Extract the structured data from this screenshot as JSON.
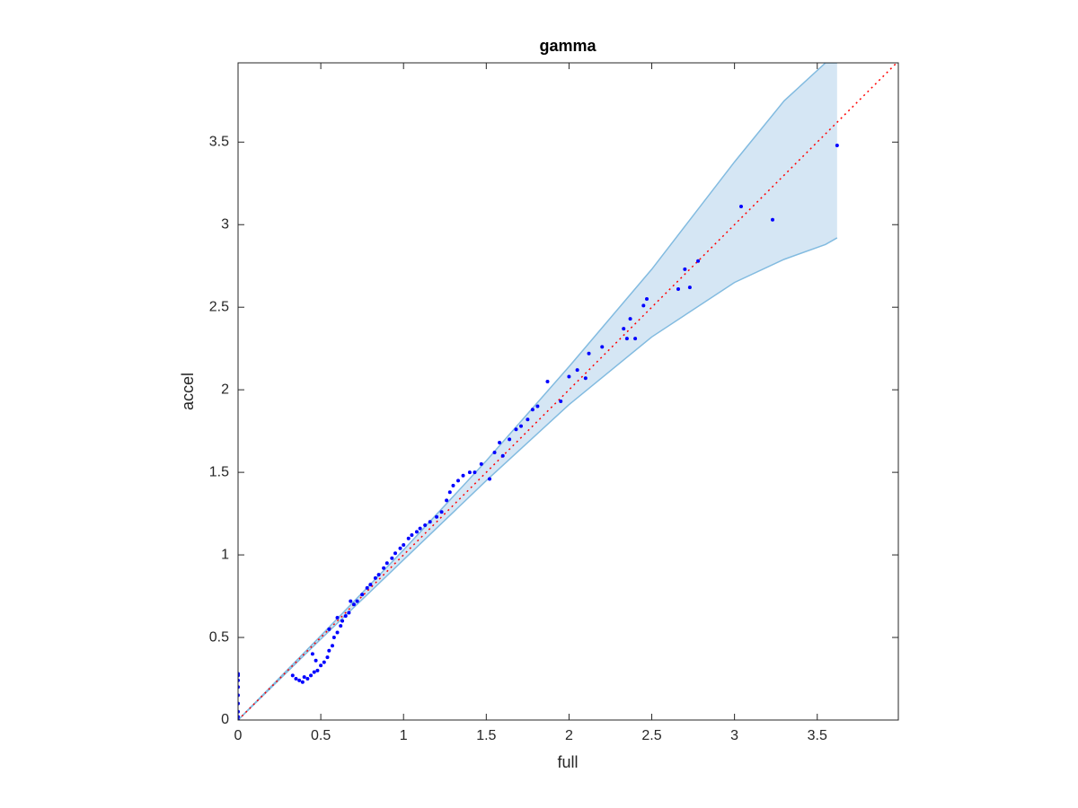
{
  "chart_data": {
    "type": "scatter",
    "title": "gamma",
    "x_label": "full",
    "y_label": "accel",
    "xlim": [
      0,
      3.99
    ],
    "ylim": [
      0,
      3.98
    ],
    "xticks": [
      0,
      0.5,
      1,
      1.5,
      2,
      2.5,
      3,
      3.5
    ],
    "yticks": [
      0,
      0.5,
      1,
      1.5,
      2,
      2.5,
      3,
      3.5
    ],
    "box": true,
    "band": {
      "color": "#d5e6f4",
      "edge_color": "#82bbe0",
      "x": [
        0,
        0.5,
        1,
        1.5,
        2,
        2.5,
        3,
        3.3,
        3.55,
        3.62
      ],
      "upper": [
        0,
        0.51,
        1.03,
        1.57,
        2.14,
        2.73,
        3.38,
        3.75,
        3.98,
        3.98
      ],
      "lower": [
        0,
        0.49,
        0.97,
        1.45,
        1.91,
        2.32,
        2.65,
        2.79,
        2.88,
        2.92
      ]
    },
    "reference_line": {
      "color": "#ff0000",
      "x": [
        0,
        3.99
      ],
      "y": [
        0,
        3.99
      ]
    },
    "points": {
      "color": "#0000ff",
      "x": [
        0,
        0,
        0,
        0,
        0,
        0,
        0,
        0,
        0,
        0.33,
        0.35,
        0.37,
        0.39,
        0.4,
        0.42,
        0.44,
        0.46,
        0.48,
        0.5,
        0.52,
        0.54,
        0.55,
        0.57,
        0.58,
        0.6,
        0.62,
        0.63,
        0.65,
        0.67,
        0.7,
        0.72,
        0.75,
        0.78,
        0.8,
        0.83,
        0.85,
        0.88,
        0.9,
        0.93,
        0.95,
        0.98,
        1.0,
        1.03,
        1.05,
        1.08,
        1.1,
        1.13,
        1.16,
        1.2,
        1.23,
        1.26,
        1.28,
        1.3,
        1.33,
        1.36,
        1.4,
        1.43,
        1.47,
        1.52,
        1.55,
        1.58,
        1.6,
        1.64,
        1.68,
        1.71,
        1.75,
        1.78,
        1.81,
        0.45,
        0.55,
        0.68,
        0.47,
        0.6,
        1.87,
        1.95,
        2.0,
        2.05,
        2.1,
        2.12,
        2.2,
        2.33,
        2.37,
        2.35,
        2.4,
        2.45,
        2.47,
        2.66,
        2.7,
        2.73,
        2.78,
        3.04,
        3.23,
        3.62
      ],
      "y": [
        0,
        0.02,
        0.05,
        0.1,
        0.15,
        0.2,
        0.24,
        0.27,
        0.28,
        0.27,
        0.25,
        0.24,
        0.23,
        0.26,
        0.25,
        0.27,
        0.29,
        0.3,
        0.33,
        0.35,
        0.38,
        0.42,
        0.45,
        0.5,
        0.53,
        0.57,
        0.6,
        0.63,
        0.65,
        0.7,
        0.72,
        0.76,
        0.8,
        0.82,
        0.86,
        0.88,
        0.92,
        0.95,
        0.98,
        1.01,
        1.04,
        1.06,
        1.1,
        1.12,
        1.14,
        1.16,
        1.18,
        1.2,
        1.23,
        1.26,
        1.33,
        1.38,
        1.42,
        1.45,
        1.48,
        1.5,
        1.5,
        1.55,
        1.46,
        1.62,
        1.68,
        1.6,
        1.7,
        1.76,
        1.78,
        1.82,
        1.88,
        1.9,
        0.4,
        0.55,
        0.72,
        0.36,
        0.62,
        2.05,
        1.93,
        2.08,
        2.12,
        2.07,
        2.22,
        2.26,
        2.37,
        2.43,
        2.31,
        2.31,
        2.51,
        2.55,
        2.61,
        2.73,
        2.62,
        2.78,
        3.11,
        3.03,
        3.48
      ]
    }
  }
}
